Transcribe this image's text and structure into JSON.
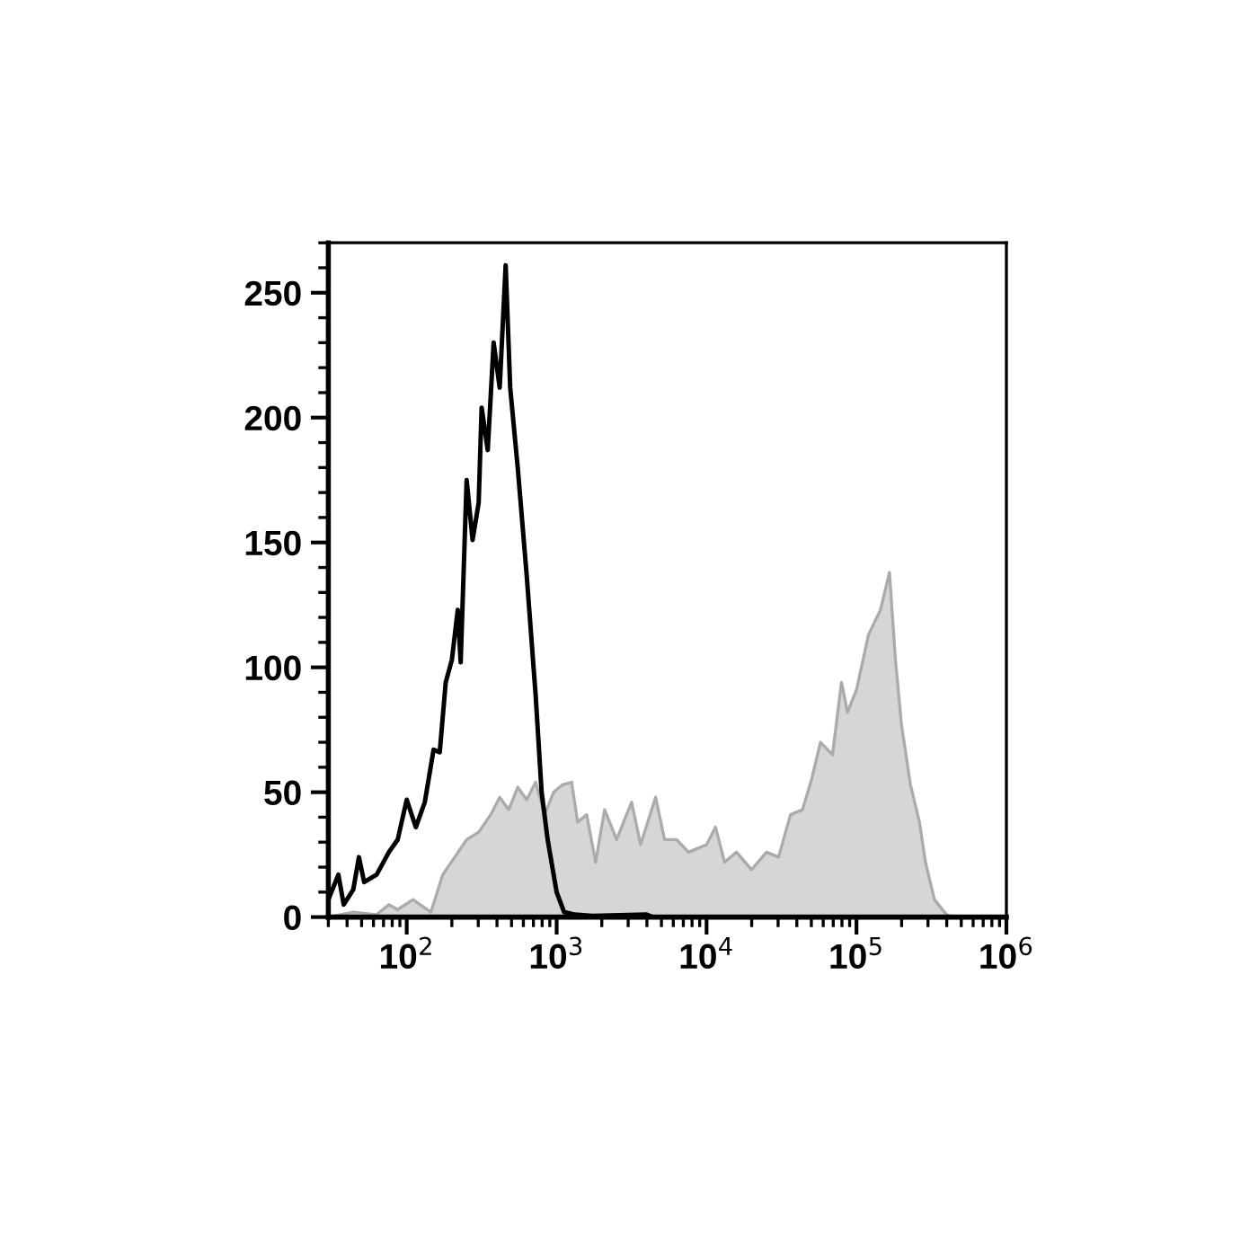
{
  "chart_data": {
    "type": "area",
    "series": [
      {
        "color": "#d6d6d6",
        "x": [
          30,
          44,
          63,
          76,
          87,
          110,
          145,
          174,
          209,
          251,
          302,
          363,
          417,
          479,
          550,
          631,
          724,
          832,
          955,
          1096,
          1259,
          1380,
          1585,
          1820,
          2089,
          2512,
          3162,
          3631,
          4571,
          5248,
          6310,
          7586,
          10000,
          11482,
          13183,
          15849,
          19953,
          25119,
          30200,
          36308,
          43652,
          50119,
          57544,
          69183,
          79433,
          87096,
          100000,
          120226,
          144544,
          165959,
          181970,
          199526,
          229087,
          263027,
          288403,
          331131,
          398107,
          436516,
          1000000
        ],
        "values": [
          0,
          2,
          1,
          5,
          3,
          7,
          2,
          17,
          24,
          31,
          34,
          41,
          48,
          43,
          52,
          47,
          54,
          41,
          50,
          53,
          54,
          38,
          41,
          22,
          43,
          31,
          46,
          29,
          48,
          31,
          31,
          26,
          29,
          36,
          22,
          26,
          19,
          26,
          24,
          41,
          43,
          55,
          70,
          65,
          94,
          82,
          91,
          113,
          123,
          138,
          103,
          77,
          53,
          38,
          22,
          7,
          1,
          0,
          0
        ]
      },
      {
        "type": "line",
        "color": "#000000",
        "x": [
          30,
          35,
          38,
          44,
          48,
          52,
          63,
          76,
          87,
          100,
          115,
          132,
          151,
          166,
          182,
          200,
          219,
          229,
          251,
          275,
          302,
          316,
          347,
          380,
          417,
          457,
          490,
          550,
          631,
          724,
          794,
          871,
          1000,
          1122,
          1318,
          1738,
          3981,
          4365,
          1000000
        ],
        "values": [
          7,
          17,
          5,
          11,
          24,
          14,
          17,
          26,
          31,
          47,
          36,
          46,
          67,
          66,
          94,
          103,
          123,
          102,
          175,
          151,
          166,
          204,
          187,
          230,
          212,
          261,
          212,
          180,
          137,
          89,
          50,
          31,
          10,
          2,
          1,
          0.5,
          1,
          0,
          0
        ]
      }
    ],
    "log": "x",
    "xlim": [
      30,
      1000000
    ],
    "xticks": [
      {
        "value": 100,
        "label": "10$^{2}$"
      },
      {
        "value": 1000,
        "label": "10$^{3}$"
      },
      {
        "value": 10000,
        "label": "10$^{4}$"
      },
      {
        "value": 100000,
        "label": "10$^{5}$"
      },
      {
        "value": 1000000,
        "label": "10$^{6}$"
      }
    ],
    "ylim": [
      0,
      270
    ],
    "yticks": [
      0,
      50,
      100,
      150,
      200,
      250
    ],
    "grid": false,
    "legend": false
  }
}
